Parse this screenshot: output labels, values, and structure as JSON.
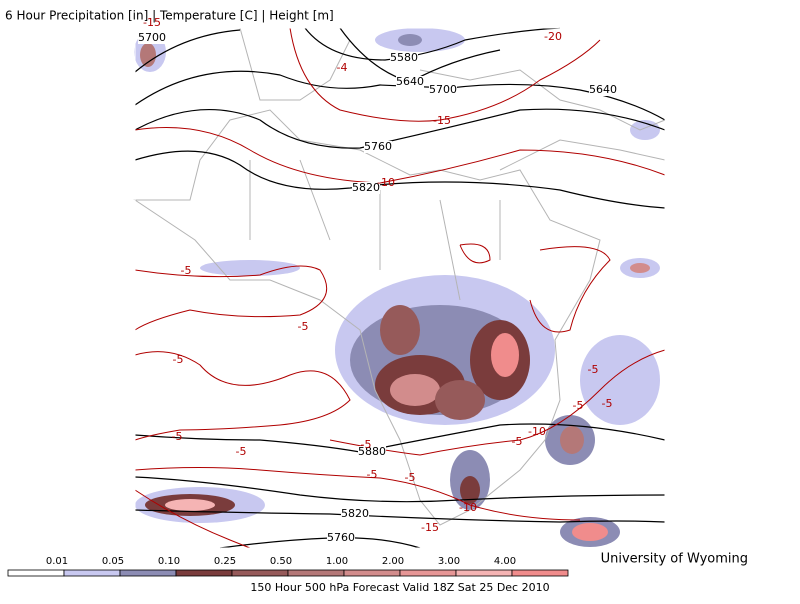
{
  "header": {
    "title": "6 Hour Precipitation [in] | Temperature [C] | Height [m]"
  },
  "height_labels": [
    "5700",
    "5580",
    "5640",
    "5700",
    "5640",
    "5760",
    "5820",
    "5880",
    "5820",
    "5760"
  ],
  "temperature_labels": [
    "-15",
    "-20",
    "-4",
    "-15",
    "-10",
    "-5",
    "-5",
    "-5",
    "-5",
    "-5",
    "-5",
    "-5",
    "-5",
    "-5",
    "-5",
    "-5",
    "-5",
    "-10",
    "-10",
    "-15"
  ],
  "colorbar": {
    "labels": [
      "0.01",
      "0.05",
      "0.10",
      "0.25",
      "0.50",
      "1.00",
      "2.00",
      "3.00",
      "4.00"
    ],
    "colors": [
      "#ffffff",
      "#c8c8f0",
      "#8c8cb4",
      "#7a3c3c",
      "#965a5a",
      "#b47878",
      "#d28c8c",
      "#e69696",
      "#f5b4b4",
      "#f08c8c"
    ]
  },
  "footer": {
    "caption": "150 Hour 500 hPa Forecast Valid 18Z Sat 25 Dec 2010",
    "credit": "University of Wyoming"
  }
}
